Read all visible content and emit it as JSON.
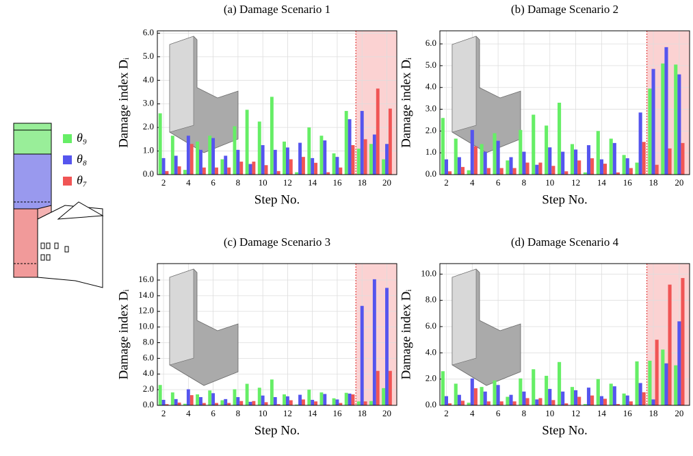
{
  "legend": [
    {
      "name": "θ₉",
      "color": "#66ee66"
    },
    {
      "name": "θ₈",
      "color": "#5555ee"
    },
    {
      "name": "θ₇",
      "color": "#f05555"
    }
  ],
  "chart_data": [
    {
      "type": "bar",
      "title": "(a) Damage Scenario 1",
      "xlabel": "Step No.",
      "ylabel": "Damage index Dᵢ",
      "x": [
        2,
        3,
        4,
        5,
        6,
        7,
        8,
        9,
        10,
        11,
        12,
        13,
        14,
        15,
        16,
        17,
        18,
        19,
        20
      ],
      "series": [
        {
          "values": [
            2.6,
            1.65,
            0.2,
            1.4,
            1.65,
            0.65,
            2.05,
            2.75,
            2.25,
            3.3,
            1.4,
            0.1,
            2.0,
            1.65,
            0.9,
            2.7,
            1.1,
            1.3,
            0.65
          ]
        },
        {
          "values": [
            0.7,
            0.8,
            1.65,
            1.05,
            1.55,
            0.8,
            1.05,
            0.45,
            1.25,
            1.05,
            1.15,
            1.35,
            0.7,
            1.45,
            0.75,
            2.35,
            2.7,
            1.7,
            1.3
          ]
        },
        {
          "values": [
            0.15,
            0.35,
            1.3,
            0.3,
            0.3,
            0.3,
            0.55,
            0.55,
            0.4,
            0.15,
            0.65,
            0.75,
            0.5,
            0.1,
            0.3,
            1.25,
            1.5,
            3.65,
            2.8
          ]
        }
      ],
      "xlim": [
        1.5,
        20.8
      ],
      "ylim": [
        0,
        6.1
      ],
      "xticks": [
        2,
        4,
        6,
        8,
        10,
        12,
        14,
        16,
        18,
        20
      ],
      "yticks": [
        {
          "value": 0,
          "label": "0.0"
        },
        {
          "value": 1,
          "label": "1.0"
        },
        {
          "value": 2,
          "label": "2.0"
        },
        {
          "value": 3,
          "label": "3.0"
        },
        {
          "value": 4,
          "label": "4.0"
        },
        {
          "value": 5,
          "label": "5.0"
        },
        {
          "value": 6,
          "label": "6.0"
        }
      ],
      "shaded_from": 17.5,
      "grid": true
    },
    {
      "type": "bar",
      "title": "(b) Damage Scenario 2",
      "xlabel": "Step No.",
      "ylabel": "Damage index Dᵢ",
      "x": [
        2,
        3,
        4,
        5,
        6,
        7,
        8,
        9,
        10,
        11,
        12,
        13,
        14,
        15,
        16,
        17,
        18,
        19,
        20
      ],
      "series": [
        {
          "values": [
            2.6,
            1.65,
            0.2,
            1.4,
            1.9,
            0.65,
            2.05,
            2.75,
            2.25,
            3.3,
            1.4,
            0.1,
            2.0,
            1.65,
            0.9,
            0.55,
            3.95,
            5.1,
            5.05
          ]
        },
        {
          "values": [
            0.7,
            0.8,
            2.05,
            1.05,
            1.55,
            0.8,
            1.05,
            0.45,
            1.25,
            1.05,
            1.15,
            1.35,
            0.7,
            1.45,
            0.75,
            2.85,
            4.85,
            5.85,
            4.6
          ]
        },
        {
          "values": [
            0.15,
            0.35,
            1.3,
            0.3,
            0.3,
            0.3,
            0.55,
            0.55,
            0.4,
            0.15,
            0.65,
            0.75,
            0.5,
            0.1,
            0.3,
            1.5,
            0.45,
            1.2,
            1.45
          ]
        }
      ],
      "xlim": [
        1.5,
        20.8
      ],
      "ylim": [
        0,
        6.6
      ],
      "xticks": [
        2,
        4,
        6,
        8,
        10,
        12,
        14,
        16,
        18,
        20
      ],
      "yticks": [
        {
          "value": 0,
          "label": "0.0"
        },
        {
          "value": 1,
          "label": "1.0"
        },
        {
          "value": 2,
          "label": "2.0"
        },
        {
          "value": 3,
          "label": "3.0"
        },
        {
          "value": 4,
          "label": "4.0"
        },
        {
          "value": 5,
          "label": "5.0"
        },
        {
          "value": 6,
          "label": "6.0"
        }
      ],
      "shaded_from": 17.5,
      "grid": true
    },
    {
      "type": "bar",
      "title": "(c) Damage Scenario 3",
      "xlabel": "Step No.",
      "ylabel": "Damage index Dᵢ",
      "x": [
        2,
        3,
        4,
        5,
        6,
        7,
        8,
        9,
        10,
        11,
        12,
        13,
        14,
        15,
        16,
        17,
        18,
        19,
        20
      ],
      "series": [
        {
          "values": [
            2.6,
            1.65,
            0.2,
            1.4,
            1.9,
            0.65,
            2.05,
            2.75,
            2.25,
            3.3,
            1.4,
            0.1,
            2.0,
            1.65,
            0.9,
            1.6,
            0.5,
            0.55,
            2.2
          ]
        },
        {
          "values": [
            0.7,
            0.8,
            2.05,
            1.05,
            1.55,
            0.8,
            1.05,
            0.45,
            1.25,
            1.05,
            1.15,
            1.35,
            0.7,
            1.45,
            0.75,
            1.5,
            12.7,
            16.1,
            15.0
          ]
        },
        {
          "values": [
            0.15,
            0.35,
            1.3,
            0.3,
            0.3,
            0.3,
            0.55,
            0.55,
            0.4,
            0.15,
            0.65,
            0.75,
            0.5,
            0.1,
            0.3,
            1.4,
            0.5,
            4.4,
            4.4
          ]
        }
      ],
      "xlim": [
        1.5,
        20.8
      ],
      "ylim": [
        0,
        18.1
      ],
      "xticks": [
        2,
        4,
        6,
        8,
        10,
        12,
        14,
        16,
        18,
        20
      ],
      "yticks": [
        {
          "value": 0,
          "label": "0.0"
        },
        {
          "value": 2,
          "label": "2.0"
        },
        {
          "value": 4,
          "label": "4.0"
        },
        {
          "value": 6,
          "label": "6.0"
        },
        {
          "value": 8,
          "label": "8.0"
        },
        {
          "value": 10,
          "label": "10.0"
        },
        {
          "value": 12,
          "label": "12.0"
        },
        {
          "value": 14,
          "label": "14.0"
        },
        {
          "value": 16,
          "label": "16.0"
        }
      ],
      "shaded_from": 17.5,
      "grid": true
    },
    {
      "type": "bar",
      "title": "(d) Damage Scenario 4",
      "xlabel": "Step No.",
      "ylabel": "Damage index Dᵢ",
      "x": [
        2,
        3,
        4,
        5,
        6,
        7,
        8,
        9,
        10,
        11,
        12,
        13,
        14,
        15,
        16,
        17,
        18,
        19,
        20
      ],
      "series": [
        {
          "values": [
            2.6,
            1.65,
            0.2,
            1.4,
            1.9,
            0.65,
            2.05,
            2.75,
            2.25,
            3.3,
            1.4,
            0.1,
            2.0,
            1.65,
            0.9,
            3.35,
            3.4,
            4.25,
            3.05
          ]
        },
        {
          "values": [
            0.7,
            0.8,
            2.05,
            1.05,
            1.55,
            0.8,
            1.05,
            0.45,
            1.25,
            1.05,
            1.15,
            1.35,
            0.7,
            1.45,
            0.75,
            1.7,
            0.45,
            3.2,
            6.4
          ]
        },
        {
          "values": [
            0.15,
            0.35,
            1.3,
            0.3,
            0.3,
            0.3,
            0.55,
            0.55,
            0.4,
            0.15,
            0.65,
            0.75,
            0.5,
            0.1,
            0.3,
            1.0,
            5.0,
            9.2,
            9.7
          ]
        }
      ],
      "xlim": [
        1.5,
        20.8
      ],
      "ylim": [
        0,
        10.8
      ],
      "xticks": [
        2,
        4,
        6,
        8,
        10,
        12,
        14,
        16,
        18,
        20
      ],
      "yticks": [
        {
          "value": 0,
          "label": "0.0"
        },
        {
          "value": 2,
          "label": "2.0"
        },
        {
          "value": 4,
          "label": "4.0"
        },
        {
          "value": 6,
          "label": "6.0"
        },
        {
          "value": 8,
          "label": "8.0"
        },
        {
          "value": 10,
          "label": "10.0"
        }
      ],
      "shaded_from": 17.5,
      "grid": true
    }
  ]
}
